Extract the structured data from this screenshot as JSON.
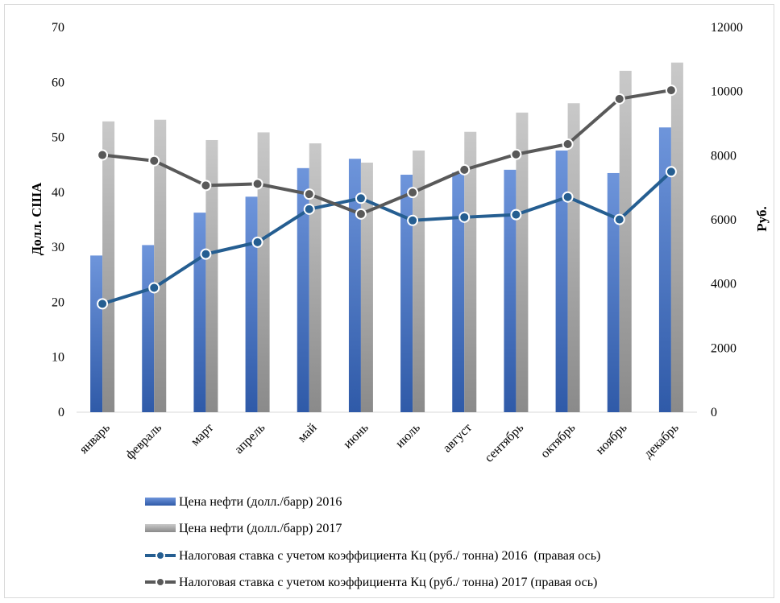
{
  "chart_data": {
    "type": "bar",
    "categories": [
      "январь",
      "февраль",
      "март",
      "апрель",
      "май",
      "июнь",
      "июль",
      "август",
      "сентябрь",
      "октябрь",
      "ноябрь",
      "декабрь"
    ],
    "series": [
      {
        "name": "Цена нефти (долл./барр) 2016",
        "type": "bar",
        "axis": "left",
        "color": "#4472c4",
        "values": [
          28.5,
          30.4,
          36.3,
          39.2,
          44.4,
          46.1,
          43.2,
          43.6,
          44.1,
          47.6,
          43.5,
          51.8
        ]
      },
      {
        "name": "Цена нефти (долл./барр) 2017",
        "type": "bar",
        "axis": "left",
        "color": "#a5a5a5",
        "values": [
          52.9,
          53.2,
          49.5,
          50.9,
          48.9,
          45.4,
          47.6,
          51.0,
          54.5,
          56.2,
          62.1,
          63.6
        ]
      },
      {
        "name": "Налоговая ставка с учетом коэффициента Кц (руб./ тонна) 2016  (правая ось)",
        "type": "line",
        "axis": "right",
        "color": "#255e91",
        "values": [
          3380,
          3880,
          4930,
          5300,
          6330,
          6670,
          5980,
          6080,
          6160,
          6710,
          6010,
          7500
        ]
      },
      {
        "name": "Налоговая ставка с учетом коэффициента Кц (руб./ тонна) 2017 (правая ось)",
        "type": "line",
        "axis": "right",
        "color": "#595959",
        "values": [
          8020,
          7840,
          7070,
          7120,
          6800,
          6180,
          6850,
          7560,
          8040,
          8360,
          9770,
          10040
        ]
      }
    ],
    "ylabel": "Долл. США",
    "y2label": "Руб.",
    "ylim": [
      0,
      70
    ],
    "y2lim": [
      0,
      12000
    ],
    "yticks": [
      "0",
      "10",
      "20",
      "30",
      "40",
      "50",
      "60",
      "70"
    ],
    "y2ticks": [
      "0",
      "2000",
      "4000",
      "6000",
      "8000",
      "10000",
      "12000"
    ],
    "grid": false,
    "legend_position": "bottom"
  }
}
